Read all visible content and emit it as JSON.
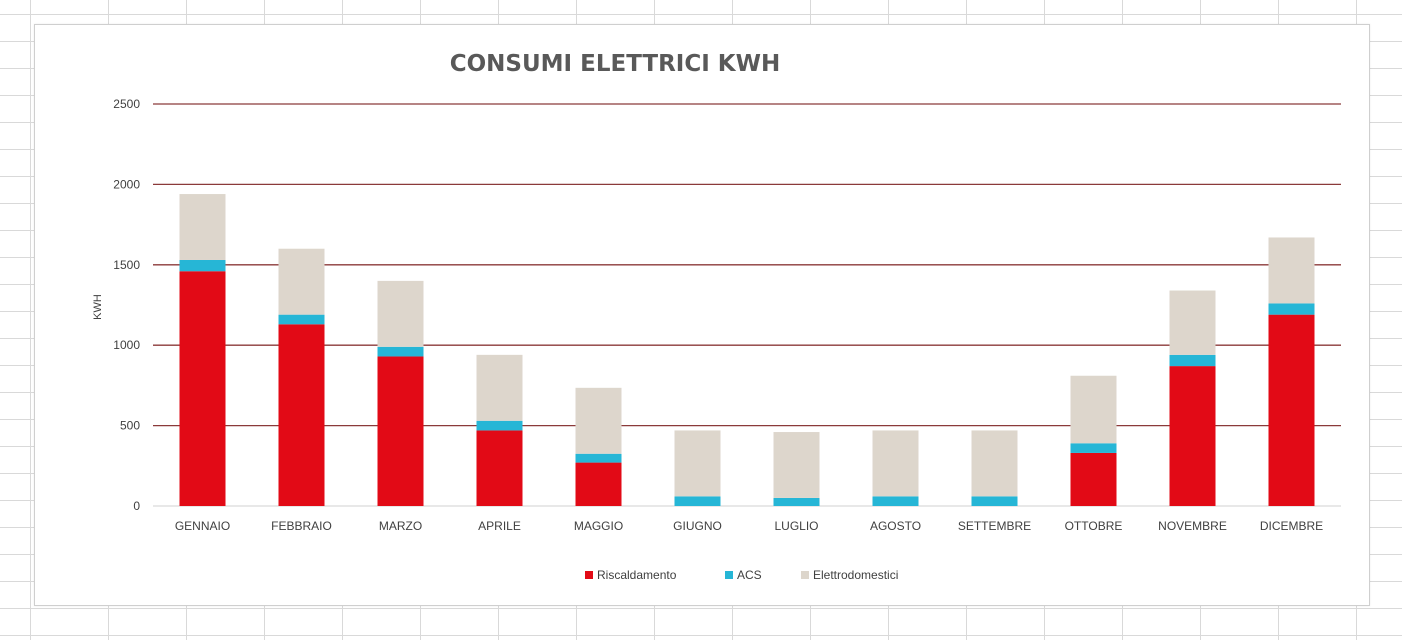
{
  "chart_data": {
    "type": "bar",
    "stacked": true,
    "title": "CONSUMI ELETTRICI KWH",
    "ylabel": "KWH",
    "xlabel": "",
    "ylim": [
      0,
      2500
    ],
    "yticks": [
      0,
      500,
      1000,
      1500,
      2000,
      2500
    ],
    "grid": true,
    "legend_position": "bottom",
    "categories": [
      "GENNAIO",
      "FEBBRAIO",
      "MARZO",
      "APRILE",
      "MAGGIO",
      "GIUGNO",
      "LUGLIO",
      "AGOSTO",
      "SETTEMBRE",
      "OTTOBRE",
      "NOVEMBRE",
      "DICEMBRE"
    ],
    "series": [
      {
        "name": "Riscaldamento",
        "color": "#e20a16",
        "values": [
          1460,
          1130,
          930,
          470,
          270,
          0,
          0,
          0,
          0,
          330,
          870,
          1190
        ]
      },
      {
        "name": "ACS",
        "color": "#26b6d6",
        "values": [
          70,
          60,
          60,
          60,
          55,
          60,
          50,
          60,
          60,
          60,
          70,
          70
        ]
      },
      {
        "name": "Elettrodomestici",
        "color": "#ddd6cc",
        "values": [
          410,
          410,
          410,
          410,
          410,
          410,
          410,
          410,
          410,
          420,
          400,
          410
        ]
      }
    ],
    "gridline_color": "#8b3a3a"
  }
}
